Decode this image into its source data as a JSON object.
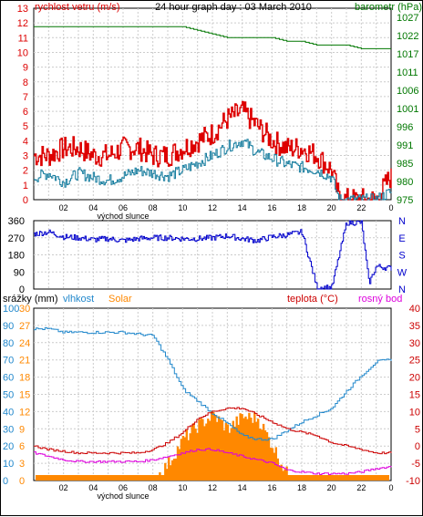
{
  "top_panel": {
    "title": "24 hour graph day : 03 March 2010",
    "left_label": "rychlost vetru (m/s)",
    "right_label": "barometr (hPa)",
    "left_ticks": [
      "0",
      "1",
      "2",
      "3",
      "4",
      "5",
      "6",
      "7",
      "8",
      "9",
      "10",
      "11",
      "12",
      "13"
    ],
    "right_ticks": [
      "975",
      "980",
      "985",
      "991",
      "996",
      "1001",
      "1006",
      "1011",
      "1017",
      "1022",
      "1027"
    ],
    "x_ticks": [
      "02",
      "04",
      "06",
      "08",
      "10",
      "12",
      "14",
      "16",
      "18",
      "20",
      "22",
      "0"
    ],
    "sunrise_label": "východ slunce"
  },
  "mid_panel": {
    "left_ticks": [
      "0",
      "90",
      "180",
      "270",
      "360"
    ],
    "right_ticks": [
      "N",
      "W",
      "S",
      "E",
      "N"
    ]
  },
  "bottom_panel": {
    "legend": [
      "srážky (mm)",
      "vlhkost",
      "Solar",
      "teplota (°C)",
      "rosný bod"
    ],
    "left_ticks_a": [
      "0",
      "3",
      "6",
      "9",
      "12",
      "15",
      "18",
      "21",
      "24",
      "27",
      "30"
    ],
    "left_ticks_b": [
      "0",
      "10",
      "20",
      "30",
      "40",
      "50",
      "60",
      "70",
      "80",
      "90",
      "100"
    ],
    "right_ticks": [
      "-10",
      "-5",
      "0",
      "5",
      "10",
      "15",
      "20",
      "25",
      "30",
      "35",
      "40"
    ],
    "x_ticks": [
      "02",
      "04",
      "06",
      "08",
      "10",
      "12",
      "14",
      "16",
      "18",
      "20",
      "22",
      "0"
    ],
    "sunrise_label": "východ slunce"
  },
  "colors": {
    "wind": "#dd0000",
    "gust": "#1a7fa0",
    "pressure": "#007700",
    "direction": "#0000cc",
    "humidity": "#2288cc",
    "solar": "#ff8800",
    "temperature": "#cc0000",
    "dewpoint": "#dd00dd"
  },
  "chart_data": [
    {
      "type": "line",
      "title": "24 hour graph day : 03 March 2010",
      "xlabel": "",
      "ylabel": "rychlost vetru (m/s)",
      "x": [
        0,
        1,
        2,
        3,
        4,
        5,
        6,
        7,
        8,
        9,
        10,
        11,
        12,
        13,
        14,
        15,
        16,
        17,
        18,
        19,
        20,
        20.5,
        21,
        22,
        23,
        23.9
      ],
      "ylim": [
        0,
        13
      ],
      "y2lim": [
        975,
        1027
      ],
      "series": [
        {
          "name": "rychlost vetru (m/s)",
          "axis": "left",
          "values": [
            3,
            3,
            3.5,
            3.5,
            3,
            3,
            3.5,
            3.5,
            3,
            3,
            3.5,
            4,
            4.5,
            5.5,
            6,
            5,
            4,
            3.5,
            3.5,
            3,
            2,
            0,
            0,
            0,
            0,
            1.5
          ]
        },
        {
          "name": "",
          "axis": "left",
          "values": [
            1.5,
            1.8,
            1.2,
            1.8,
            1.5,
            1.3,
            1.6,
            2,
            1.8,
            1.6,
            2,
            2.5,
            3,
            3.6,
            4,
            3.2,
            2.8,
            2.4,
            2.2,
            2,
            1.5,
            0,
            0,
            0,
            0,
            0.5
          ]
        },
        {
          "name": "barometr (hPa)",
          "axis": "right",
          "values": [
            1022,
            1022,
            1022,
            1022,
            1022,
            1022,
            1022,
            1022,
            1022,
            1022,
            1022,
            1021,
            1020,
            1019,
            1019,
            1019,
            1019,
            1018,
            1018,
            1017,
            1017,
            1017,
            1017,
            1016,
            1016,
            1016
          ]
        }
      ]
    },
    {
      "type": "line",
      "xlabel": "",
      "ylabel": "",
      "x": [
        0,
        1,
        2,
        3,
        4,
        5,
        6,
        7,
        8,
        9,
        10,
        11,
        12,
        13,
        14,
        15,
        16,
        17,
        18,
        19,
        20,
        21,
        22,
        22.5,
        23,
        23.9
      ],
      "ylim": [
        0,
        360
      ],
      "series": [
        {
          "name": "",
          "values": [
            290,
            300,
            275,
            270,
            260,
            265,
            255,
            265,
            270,
            270,
            265,
            265,
            270,
            280,
            265,
            255,
            275,
            285,
            300,
            10,
            8,
            350,
            350,
            30,
            120,
            110
          ]
        }
      ]
    },
    {
      "type": "line",
      "legend": [
        "srážky (mm)",
        "vlhkost",
        "Solar",
        "teplota (°C)",
        "rosný bod"
      ],
      "x": [
        0,
        1,
        2,
        3,
        4,
        5,
        6,
        7,
        8,
        9,
        10,
        11,
        12,
        13,
        14,
        15,
        16,
        17,
        18,
        19,
        20,
        21,
        22,
        23,
        23.9
      ],
      "ylim": [
        0,
        30
      ],
      "y2lim": [
        -10,
        40
      ],
      "series": [
        {
          "name": "vlhkost",
          "axis": "left_percent",
          "values": [
            88,
            88,
            86,
            86,
            86,
            86,
            86,
            85,
            84,
            70,
            53,
            46,
            39,
            33,
            26,
            24,
            24,
            29,
            34,
            38,
            42,
            52,
            61,
            69,
            70
          ]
        },
        {
          "name": "Solar",
          "axis": "left_percent",
          "values": [
            0,
            0,
            0,
            0,
            0,
            0,
            0,
            0,
            0,
            10,
            24,
            32,
            38,
            30,
            37,
            36,
            20,
            3,
            0,
            0,
            0,
            0,
            0,
            0,
            0
          ]
        },
        {
          "name": "teplota (°C)",
          "axis": "right",
          "values": [
            0,
            -1,
            -1.5,
            -2,
            -2,
            -2,
            -2,
            -2,
            -1,
            1,
            4,
            8,
            10,
            11,
            11,
            9,
            7,
            5,
            4,
            3,
            1,
            0,
            -1,
            -2,
            -2
          ]
        },
        {
          "name": "rosný bod",
          "axis": "right",
          "values": [
            -2,
            -3,
            -4,
            -4.5,
            -4.5,
            -4.5,
            -4.5,
            -4.5,
            -4,
            -3,
            -2,
            -1,
            -1,
            -2,
            -3,
            -4,
            -5,
            -7,
            -7.5,
            -8,
            -8,
            -8,
            -7.5,
            -6.5,
            -6
          ]
        },
        {
          "name": "srážky (mm)",
          "axis": "left",
          "values": [
            0,
            0,
            0,
            0,
            0,
            0,
            0,
            0,
            0,
            0,
            0,
            0,
            0,
            0,
            0,
            0,
            0,
            0,
            0,
            0,
            0,
            0,
            0,
            0,
            0
          ]
        }
      ]
    }
  ]
}
